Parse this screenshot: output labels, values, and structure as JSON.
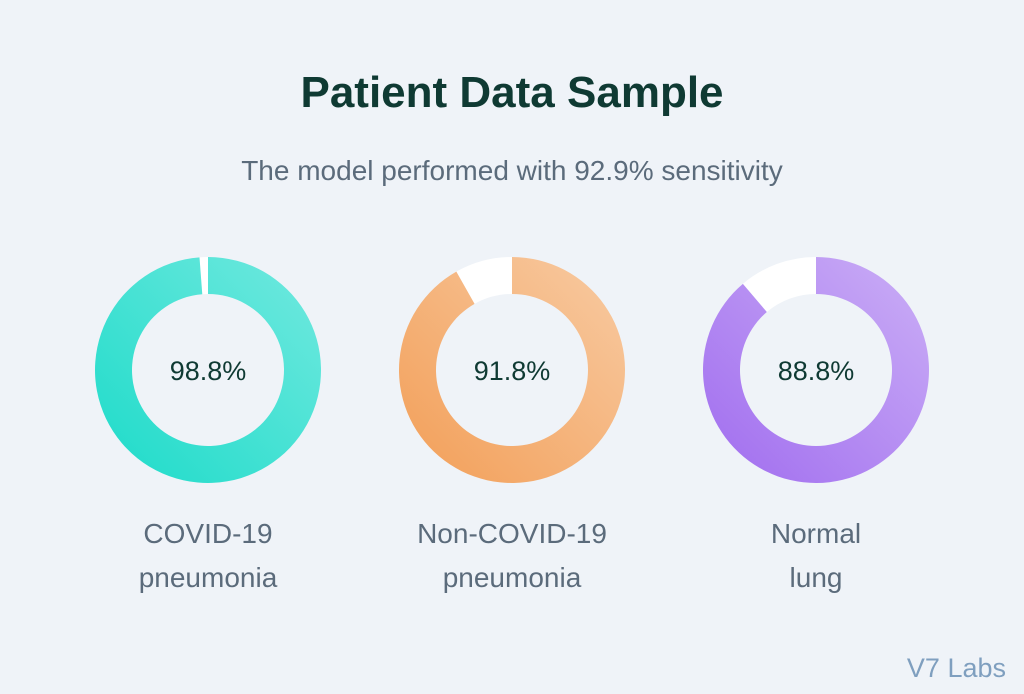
{
  "title": "Patient Data Sample",
  "subtitle": "The model performed with 92.9% sensitivity",
  "brand": "V7 Labs",
  "chart_data": {
    "type": "pie",
    "variant": "donut",
    "series": [
      {
        "name": "COVID-19 pneumonia",
        "label_lines": [
          "COVID-19",
          "pneumonia"
        ],
        "value": 98.8,
        "value_label": "98.8%",
        "colors": [
          "#1cdbc9",
          "#72e9df"
        ]
      },
      {
        "name": "Non-COVID-19 pneumonia",
        "label_lines": [
          "Non-COVID-19",
          "pneumonia"
        ],
        "value": 91.8,
        "value_label": "91.8%",
        "colors": [
          "#f29e57",
          "#f8cba3"
        ]
      },
      {
        "name": "Normal lung",
        "label_lines": [
          "Normal",
          "lung"
        ],
        "value": 88.8,
        "value_label": "88.8%",
        "colors": [
          "#a06cef",
          "#cbaff6"
        ]
      }
    ],
    "remainder_color": "#ffffff"
  }
}
